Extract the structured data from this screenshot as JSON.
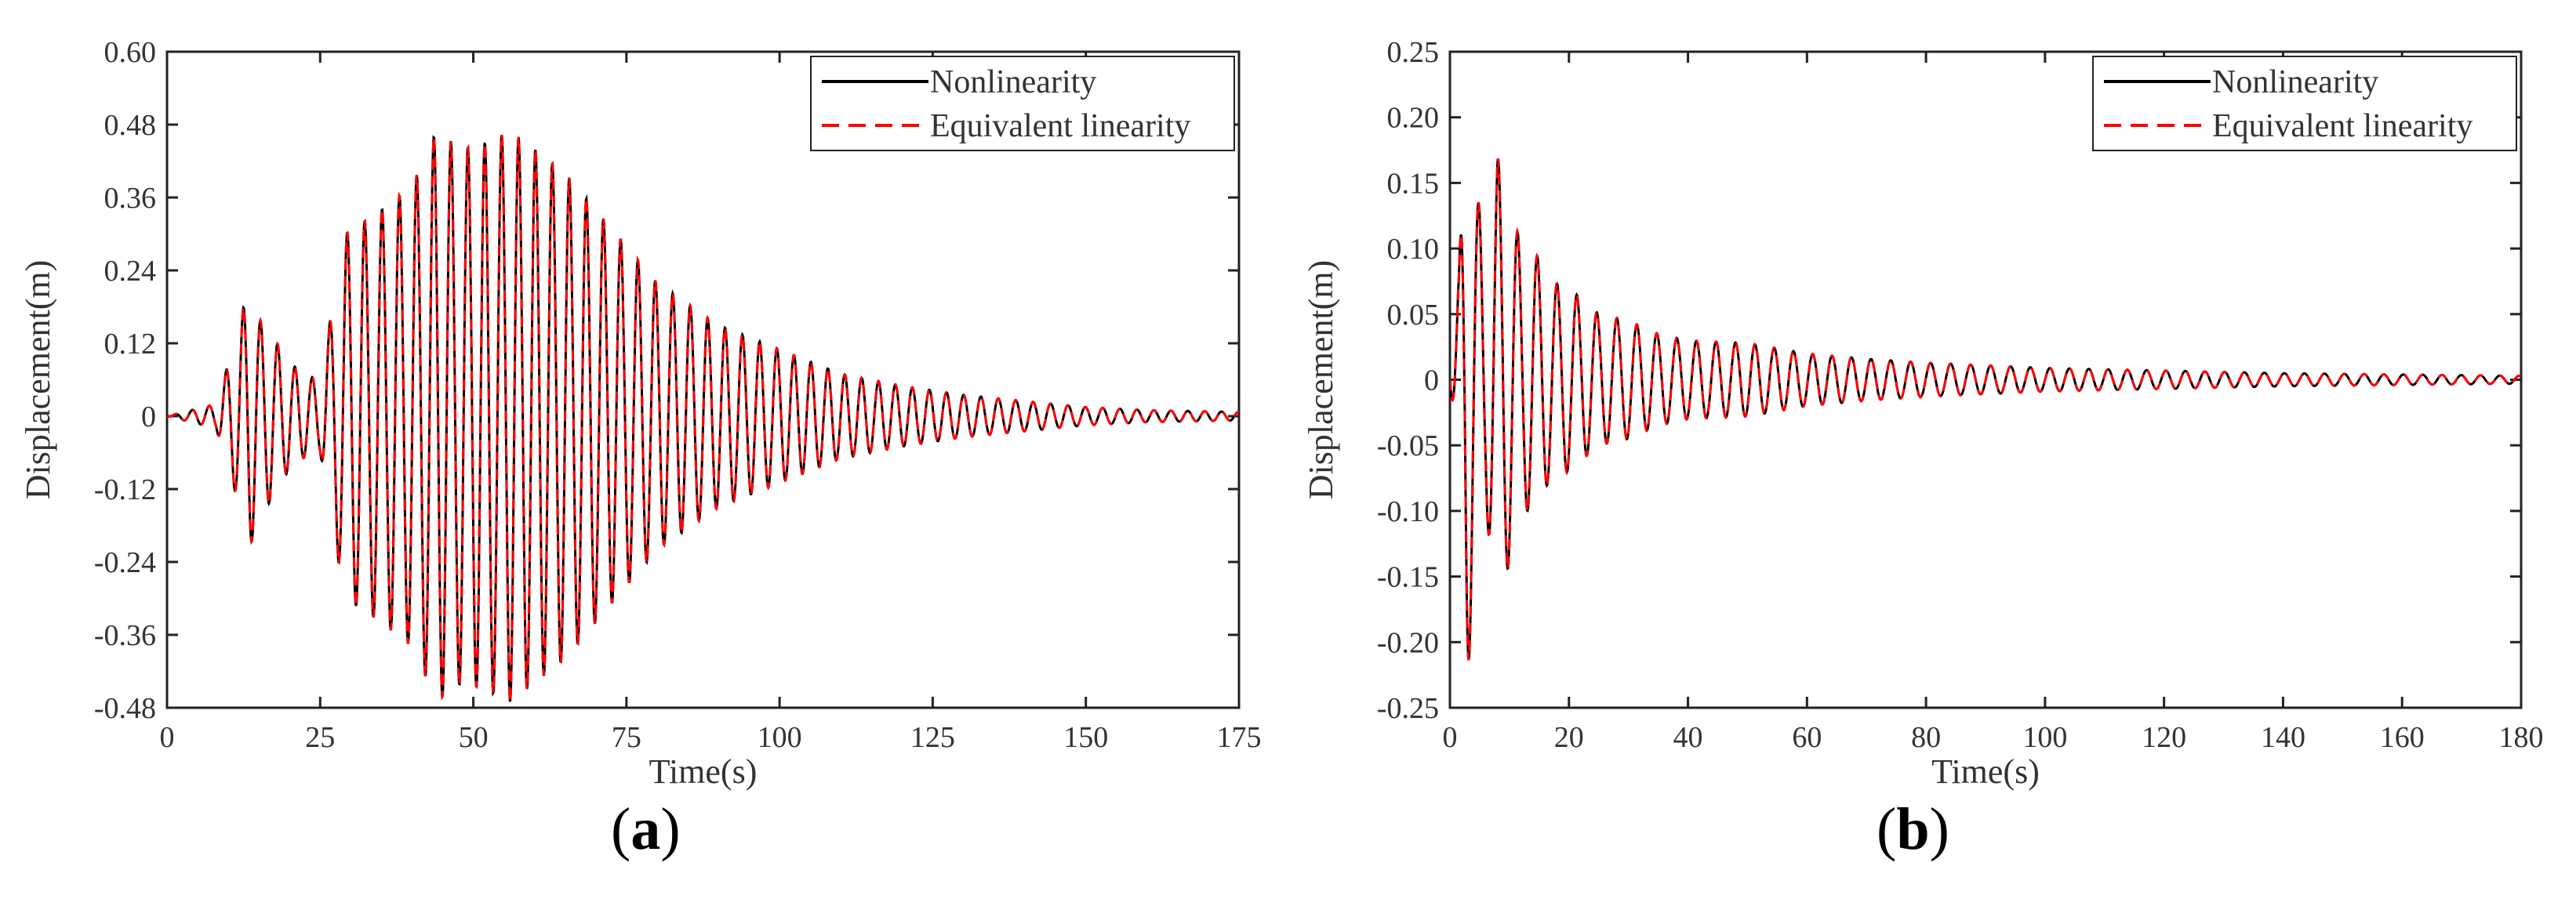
{
  "chart_data": [
    {
      "type": "line",
      "panel_label": "a",
      "xlabel": "Time(s)",
      "ylabel": "Displacement(m)",
      "xlim": [
        0,
        175
      ],
      "ylim": [
        -0.48,
        0.6
      ],
      "xticks": [
        0,
        25,
        50,
        75,
        100,
        125,
        150,
        175
      ],
      "xtick_labels": [
        "0",
        "25",
        "50",
        "75",
        "100",
        "125",
        "150",
        "175"
      ],
      "yticks": [
        -0.48,
        -0.36,
        -0.24,
        -0.12,
        0,
        0.12,
        0.24,
        0.36,
        0.48,
        0.6
      ],
      "ytick_labels": [
        "-0.48",
        "-0.36",
        "-0.24",
        "-0.12",
        "0",
        "0.12",
        "0.24",
        "0.36",
        "0.48",
        "0.60"
      ],
      "legend_position": "top-right",
      "series": [
        {
          "name": "Nonlinearity",
          "color": "#000000",
          "style": "solid"
        },
        {
          "name": "Equivalent linearity",
          "color": "#ff0000",
          "style": "dashed"
        }
      ],
      "signal": {
        "period_s": 2.8,
        "envelope": [
          [
            0,
            0
          ],
          [
            4,
            0.01
          ],
          [
            8,
            0.02
          ],
          [
            11,
            0.12
          ],
          [
            13.5,
            0.22
          ],
          [
            15,
            0.16
          ],
          [
            17,
            0.14
          ],
          [
            19,
            0.1
          ],
          [
            22,
            0.07
          ],
          [
            25,
            0.06
          ],
          [
            27,
            0.18
          ],
          [
            29,
            0.3
          ],
          [
            35,
            0.34
          ],
          [
            40,
            0.38
          ],
          [
            44,
            0.47
          ],
          [
            48,
            0.44
          ],
          [
            52,
            0.45
          ],
          [
            56,
            0.47
          ],
          [
            60,
            0.44
          ],
          [
            65,
            0.4
          ],
          [
            70,
            0.34
          ],
          [
            80,
            0.22
          ],
          [
            90,
            0.15
          ],
          [
            100,
            0.11
          ],
          [
            110,
            0.07
          ],
          [
            120,
            0.05
          ],
          [
            130,
            0.035
          ],
          [
            140,
            0.025
          ],
          [
            150,
            0.015
          ],
          [
            160,
            0.01
          ],
          [
            175,
            0.007
          ]
        ]
      }
    },
    {
      "type": "line",
      "panel_label": "b",
      "xlabel": "Time(s)",
      "ylabel": "Displacement(m)",
      "xlim": [
        0,
        180
      ],
      "ylim": [
        -0.25,
        0.25
      ],
      "xticks": [
        0,
        20,
        40,
        60,
        80,
        100,
        120,
        140,
        160,
        180
      ],
      "xtick_labels": [
        "0",
        "20",
        "40",
        "60",
        "80",
        "100",
        "120",
        "140",
        "160",
        "180"
      ],
      "yticks": [
        -0.25,
        -0.2,
        -0.15,
        -0.1,
        -0.05,
        0,
        0.05,
        0.1,
        0.15,
        0.2,
        0.25
      ],
      "ytick_labels": [
        "-0.25",
        "-0.20",
        "-0.15",
        "-0.10",
        "-0.05",
        "0",
        "0.05",
        "0.10",
        "0.15",
        "0.20",
        "0.25"
      ],
      "legend_position": "top-right",
      "series": [
        {
          "name": "Nonlinearity",
          "color": "#000000",
          "style": "solid"
        },
        {
          "name": "Equivalent linearity",
          "color": "#ff0000",
          "style": "dashed"
        }
      ],
      "signal": {
        "period_s": 3.3,
        "envelope": [
          [
            0,
            0
          ],
          [
            1.5,
            0.08
          ],
          [
            2.8,
            0.24
          ],
          [
            4,
            0.16
          ],
          [
            6,
            0.1
          ],
          [
            8,
            0.17
          ],
          [
            10,
            0.14
          ],
          [
            12,
            0.1
          ],
          [
            14,
            0.1
          ],
          [
            17,
            0.075
          ],
          [
            20,
            0.07
          ],
          [
            25,
            0.05
          ],
          [
            30,
            0.045
          ],
          [
            35,
            0.035
          ],
          [
            40,
            0.03
          ],
          [
            50,
            0.028
          ],
          [
            60,
            0.02
          ],
          [
            70,
            0.016
          ],
          [
            80,
            0.013
          ],
          [
            90,
            0.011
          ],
          [
            100,
            0.009
          ],
          [
            120,
            0.007
          ],
          [
            140,
            0.005
          ],
          [
            160,
            0.004
          ],
          [
            180,
            0.003
          ]
        ]
      }
    }
  ]
}
